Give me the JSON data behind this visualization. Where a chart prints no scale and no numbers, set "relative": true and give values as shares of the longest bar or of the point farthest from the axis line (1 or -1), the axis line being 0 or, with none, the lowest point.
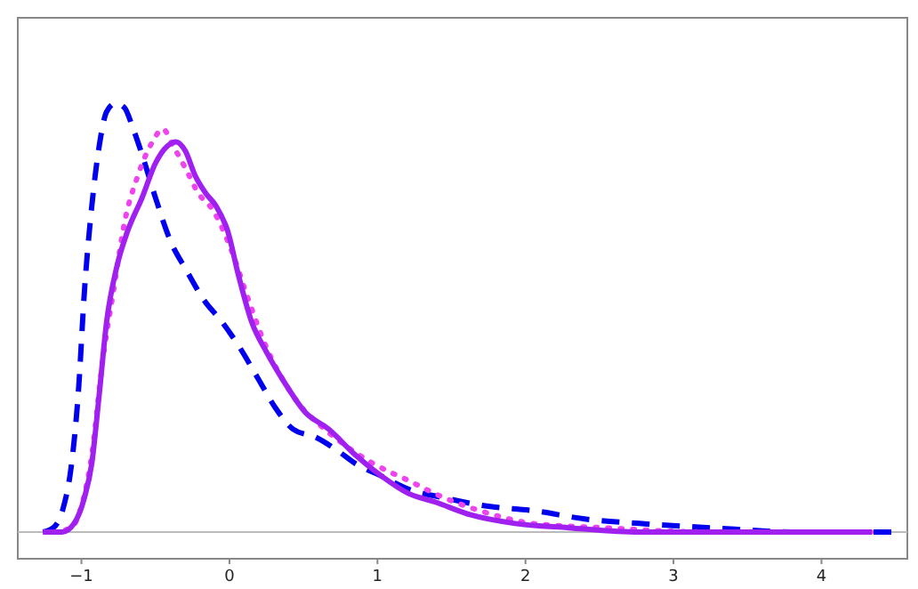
{
  "chart_data": {
    "type": "line",
    "relative": true,
    "xlim": [
      -1.43,
      4.58
    ],
    "xticks": [
      {
        "value": -1,
        "label": "−1"
      },
      0,
      1,
      2,
      3,
      4
    ],
    "tick_labels": "x",
    "grid": false,
    "series": [
      {
        "color": "#0000ee",
        "line_style": "dashed",
        "x": [
          -1.26,
          -1.19,
          -1.12,
          -1.07,
          -1.02,
          -0.98,
          -0.93,
          -0.88,
          -0.83,
          -0.77,
          -0.71,
          -0.65,
          -0.59,
          -0.5,
          -0.4,
          -0.29,
          -0.17,
          -0.05,
          0.07,
          0.19,
          0.31,
          0.43,
          0.59,
          0.73,
          0.85,
          1.03,
          1.21,
          1.45,
          1.75,
          2.05,
          2.41,
          2.77,
          3.25,
          3.86,
          4.55
        ],
        "values": [
          0,
          0.01,
          0.06,
          0.15,
          0.33,
          0.56,
          0.76,
          0.9,
          0.98,
          1,
          0.99,
          0.94,
          0.88,
          0.78,
          0.68,
          0.61,
          0.54,
          0.49,
          0.43,
          0.36,
          0.29,
          0.24,
          0.22,
          0.19,
          0.16,
          0.13,
          0.1,
          0.08,
          0.06,
          0.05,
          0.03,
          0.02,
          0.01,
          0,
          0
        ]
      },
      {
        "color": "#ee44ee",
        "line_style": "dotted",
        "x": [
          -1.19,
          -1.07,
          -1,
          -0.93,
          -0.86,
          -0.78,
          -0.71,
          -0.62,
          -0.52,
          -0.45,
          -0.38,
          -0.3,
          -0.21,
          -0.11,
          0.01,
          0.13,
          0.25,
          0.37,
          0.49,
          0.61,
          0.79,
          0.97,
          1.21,
          1.45,
          1.69,
          2.05,
          2.53,
          3.25,
          4.34
        ],
        "values": [
          0,
          0.01,
          0.06,
          0.18,
          0.39,
          0.57,
          0.72,
          0.83,
          0.91,
          0.94,
          0.9,
          0.85,
          0.79,
          0.75,
          0.66,
          0.54,
          0.43,
          0.35,
          0.29,
          0.25,
          0.2,
          0.16,
          0.12,
          0.08,
          0.05,
          0.02,
          0.01,
          0,
          0
        ]
      },
      {
        "color": "#a020f0",
        "line_style": "solid",
        "x": [
          -1.26,
          -1.13,
          -1.05,
          -0.98,
          -0.93,
          -0.88,
          -0.83,
          -0.76,
          -0.69,
          -0.59,
          -0.5,
          -0.42,
          -0.36,
          -0.3,
          -0.23,
          -0.16,
          -0.09,
          -0.01,
          0.06,
          0.15,
          0.25,
          0.37,
          0.51,
          0.67,
          0.85,
          1.03,
          1.21,
          1.39,
          1.63,
          1.93,
          2.29,
          2.77,
          3.49,
          4.34
        ],
        "values": [
          0,
          0,
          0.02,
          0.08,
          0.16,
          0.32,
          0.49,
          0.62,
          0.7,
          0.78,
          0.86,
          0.9,
          0.91,
          0.89,
          0.83,
          0.79,
          0.76,
          0.7,
          0.6,
          0.49,
          0.42,
          0.35,
          0.28,
          0.24,
          0.18,
          0.13,
          0.09,
          0.07,
          0.04,
          0.02,
          0.01,
          0,
          0,
          0
        ]
      }
    ]
  }
}
